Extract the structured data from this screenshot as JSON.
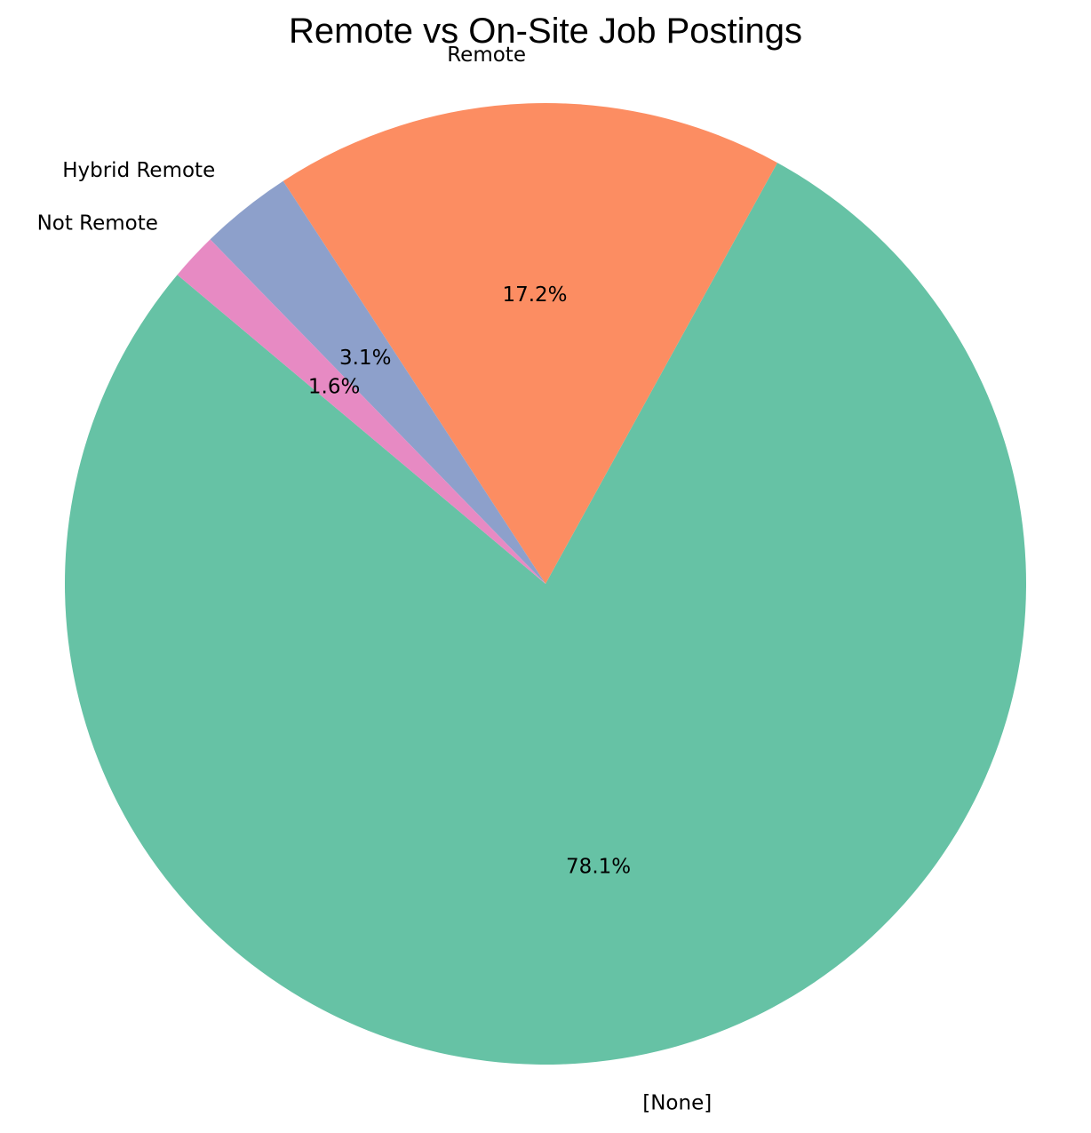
{
  "chart_data": {
    "type": "pie",
    "title": "Remote vs On-Site Job Postings",
    "slices": [
      {
        "label": "[None]",
        "value": 78.1,
        "pct_label": "78.1%",
        "color": "#66c2a5"
      },
      {
        "label": "Remote",
        "value": 17.2,
        "pct_label": "17.2%",
        "color": "#fc8d62"
      },
      {
        "label": "Hybrid Remote",
        "value": 3.1,
        "pct_label": "3.1%",
        "color": "#8da0cb"
      },
      {
        "label": "Not Remote",
        "value": 1.6,
        "pct_label": "1.6%",
        "color": "#e78ac3"
      }
    ],
    "start_angle_deg": 140,
    "direction": "counterclockwise",
    "legend": "none"
  }
}
